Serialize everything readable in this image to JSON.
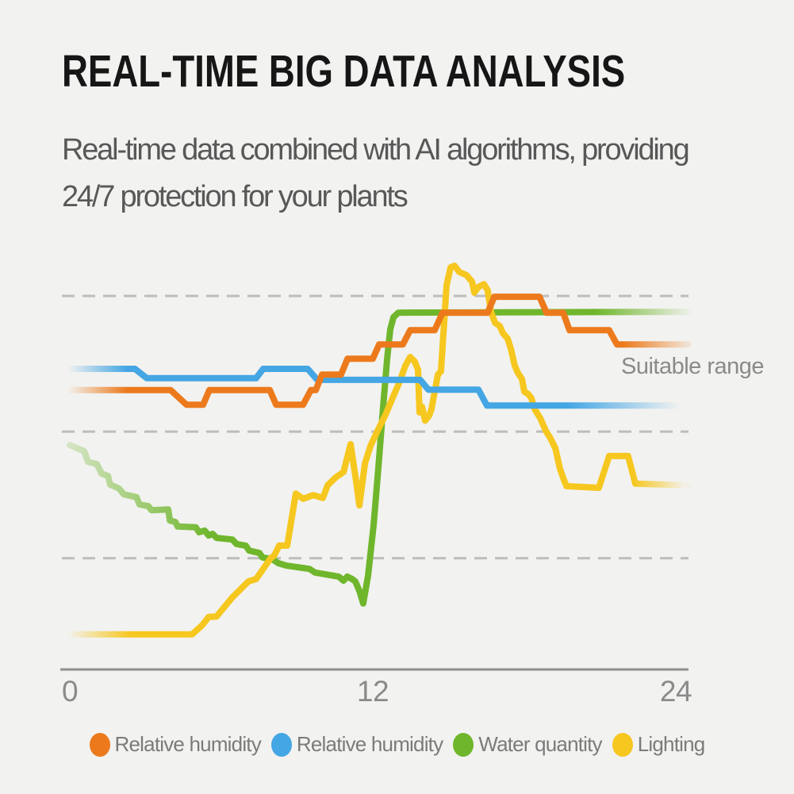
{
  "header": {
    "title": "REAL-TIME BIG DATA ANALYSIS",
    "subtitle_lines": [
      "Real-time data combined with AI algorithms, providing",
      "24/7 protection for your plants"
    ]
  },
  "chart_data": {
    "type": "line",
    "title": "",
    "xlabel": "",
    "ylabel": "",
    "xlim": [
      0,
      24.5
    ],
    "ylim": [
      0,
      100
    ],
    "grid": "horizontal dashed gridlines, no vertical grid",
    "legend_position": "bottom",
    "note": "y axis is unlabeled; y values are percent of plot height (0 = x-axis, 100 = top). Lines fade in at left edge and fade out at right edge.",
    "gridlines_y": [
      91.7,
      58.4,
      27.3
    ],
    "x_ticks": [
      {
        "label": "0",
        "x": 0
      },
      {
        "label": "12",
        "x": 12
      },
      {
        "label": "24",
        "x": 24
      }
    ],
    "annotation": {
      "text": "Suitable range"
    },
    "series": [
      {
        "name": "Relative humidity",
        "color": "#EC7A1C",
        "points": [
          [
            0,
            68.6
          ],
          [
            3.99,
            68.6
          ],
          [
            4.62,
            65.0
          ],
          [
            5.28,
            65.0
          ],
          [
            5.53,
            68.6
          ],
          [
            7.92,
            68.6
          ],
          [
            8.17,
            65.0
          ],
          [
            9.24,
            65.0
          ],
          [
            9.55,
            68.6
          ],
          [
            9.74,
            68.6
          ],
          [
            9.99,
            72.4
          ],
          [
            10.74,
            72.4
          ],
          [
            11.0,
            76.3
          ],
          [
            12.0,
            76.3
          ],
          [
            12.25,
            79.8
          ],
          [
            13.19,
            79.8
          ],
          [
            13.48,
            83.3
          ],
          [
            14.45,
            83.3
          ],
          [
            14.76,
            87.6
          ],
          [
            16.55,
            87.6
          ],
          [
            16.81,
            91.5
          ],
          [
            18.6,
            91.5
          ],
          [
            18.88,
            87.6
          ],
          [
            19.54,
            87.6
          ],
          [
            19.79,
            83.3
          ],
          [
            21.36,
            83.3
          ],
          [
            21.67,
            79.8
          ],
          [
            24.5,
            79.8
          ]
        ]
      },
      {
        "name": "Relative humidity",
        "color": "#45A6E4",
        "points": [
          [
            0,
            73.8
          ],
          [
            2.58,
            73.8
          ],
          [
            3.05,
            71.5
          ],
          [
            7.38,
            71.5
          ],
          [
            7.66,
            73.8
          ],
          [
            9.42,
            73.8
          ],
          [
            9.8,
            71.1
          ],
          [
            13.88,
            71.1
          ],
          [
            14.2,
            68.7
          ],
          [
            16.18,
            68.7
          ],
          [
            16.52,
            64.8
          ],
          [
            24.5,
            64.8
          ]
        ]
      },
      {
        "name": "Water quantity",
        "color": "#6FB62C",
        "points": [
          [
            0,
            55.1
          ],
          [
            0.57,
            53.6
          ],
          [
            0.72,
            51.0
          ],
          [
            1.07,
            50.4
          ],
          [
            1.26,
            48.1
          ],
          [
            1.51,
            47.5
          ],
          [
            1.6,
            45.4
          ],
          [
            1.95,
            44.4
          ],
          [
            2.14,
            43.0
          ],
          [
            2.64,
            42.3
          ],
          [
            2.76,
            40.5
          ],
          [
            3.11,
            40.1
          ],
          [
            3.24,
            39.1
          ],
          [
            3.9,
            39.3
          ],
          [
            3.96,
            36.6
          ],
          [
            4.18,
            36.2
          ],
          [
            4.27,
            35.1
          ],
          [
            4.99,
            34.9
          ],
          [
            5.12,
            33.7
          ],
          [
            5.34,
            34.1
          ],
          [
            5.5,
            32.9
          ],
          [
            5.65,
            33.3
          ],
          [
            5.81,
            32.3
          ],
          [
            6.44,
            31.9
          ],
          [
            6.6,
            30.8
          ],
          [
            6.97,
            30.4
          ],
          [
            7.1,
            29.2
          ],
          [
            7.51,
            28.6
          ],
          [
            7.63,
            27.5
          ],
          [
            8.01,
            27.1
          ],
          [
            8.26,
            26.1
          ],
          [
            8.58,
            25.5
          ],
          [
            9.49,
            24.7
          ],
          [
            9.71,
            23.8
          ],
          [
            10.65,
            22.8
          ],
          [
            10.84,
            21.8
          ],
          [
            10.99,
            22.8
          ],
          [
            11.18,
            22.2
          ],
          [
            11.31,
            21.6
          ],
          [
            11.47,
            19.3
          ],
          [
            11.62,
            16.2
          ],
          [
            11.81,
            23.0
          ],
          [
            12.03,
            35.4
          ],
          [
            12.22,
            49.5
          ],
          [
            12.41,
            64.7
          ],
          [
            12.57,
            76.3
          ],
          [
            12.69,
            83.5
          ],
          [
            12.82,
            86.5
          ],
          [
            13.01,
            87.6
          ],
          [
            24.5,
            87.8
          ]
        ]
      },
      {
        "name": "Lighting",
        "color": "#F6C71F",
        "points": [
          [
            0,
            8.6
          ],
          [
            4.84,
            8.6
          ],
          [
            5.25,
            10.9
          ],
          [
            5.5,
            12.9
          ],
          [
            5.81,
            13.0
          ],
          [
            6.44,
            17.7
          ],
          [
            7.07,
            21.6
          ],
          [
            7.38,
            22.2
          ],
          [
            7.95,
            27.3
          ],
          [
            8.1,
            28.0
          ],
          [
            8.29,
            30.4
          ],
          [
            8.61,
            30.4
          ],
          [
            8.95,
            43.2
          ],
          [
            9.24,
            41.9
          ],
          [
            9.64,
            42.8
          ],
          [
            10.02,
            42.1
          ],
          [
            10.21,
            45.2
          ],
          [
            10.52,
            47.1
          ],
          [
            10.84,
            48.5
          ],
          [
            11.12,
            55.3
          ],
          [
            11.31,
            47.5
          ],
          [
            11.47,
            40.3
          ],
          [
            11.69,
            50.6
          ],
          [
            11.91,
            54.9
          ],
          [
            12.19,
            58.6
          ],
          [
            12.5,
            62.5
          ],
          [
            12.82,
            67.2
          ],
          [
            13.04,
            70.3
          ],
          [
            13.29,
            74.6
          ],
          [
            13.48,
            76.7
          ],
          [
            13.66,
            75.6
          ],
          [
            13.79,
            73.6
          ],
          [
            13.85,
            63.1
          ],
          [
            13.95,
            64.5
          ],
          [
            14.07,
            61.1
          ],
          [
            14.23,
            62.3
          ],
          [
            14.32,
            63.9
          ],
          [
            14.58,
            72.4
          ],
          [
            14.7,
            73.2
          ],
          [
            14.92,
            94.3
          ],
          [
            15.08,
            98.7
          ],
          [
            15.24,
            99.1
          ],
          [
            15.42,
            97.6
          ],
          [
            15.71,
            96.8
          ],
          [
            15.93,
            95.2
          ],
          [
            16.02,
            92.5
          ],
          [
            16.18,
            93.9
          ],
          [
            16.4,
            94.6
          ],
          [
            16.55,
            93.1
          ],
          [
            16.68,
            87.8
          ],
          [
            16.84,
            85.1
          ],
          [
            17.03,
            84.3
          ],
          [
            17.15,
            82.6
          ],
          [
            17.34,
            81.2
          ],
          [
            17.47,
            78.7
          ],
          [
            17.62,
            74.6
          ],
          [
            17.75,
            72.8
          ],
          [
            17.91,
            71.3
          ],
          [
            18.0,
            68.2
          ],
          [
            18.16,
            67.6
          ],
          [
            18.28,
            66.6
          ],
          [
            18.41,
            63.9
          ],
          [
            18.63,
            61.7
          ],
          [
            18.85,
            58.6
          ],
          [
            19.04,
            56.7
          ],
          [
            19.23,
            54.3
          ],
          [
            19.41,
            49.3
          ],
          [
            19.57,
            46.5
          ],
          [
            19.67,
            45.0
          ],
          [
            20.95,
            44.6
          ],
          [
            21.36,
            52.4
          ],
          [
            22.11,
            52.4
          ],
          [
            22.4,
            45.6
          ],
          [
            24.5,
            45.2
          ]
        ]
      }
    ]
  },
  "legend": {
    "items": [
      {
        "label": "Relative humidity",
        "color": "#EC7A1C"
      },
      {
        "label": "Relative humidity",
        "color": "#45A6E4"
      },
      {
        "label": "Water quantity",
        "color": "#6FB62C"
      },
      {
        "label": "Lighting",
        "color": "#F6C71F"
      }
    ]
  },
  "colors": {
    "background": "#F2F2F0",
    "grid": "#BDBDBD",
    "axis": "#8F8F8F",
    "tick_label": "#8A8A8A",
    "annotation_text": "#8A8A8A",
    "title": "#161616",
    "subtitle": "#585858",
    "legend_text": "#7B7B7B"
  }
}
